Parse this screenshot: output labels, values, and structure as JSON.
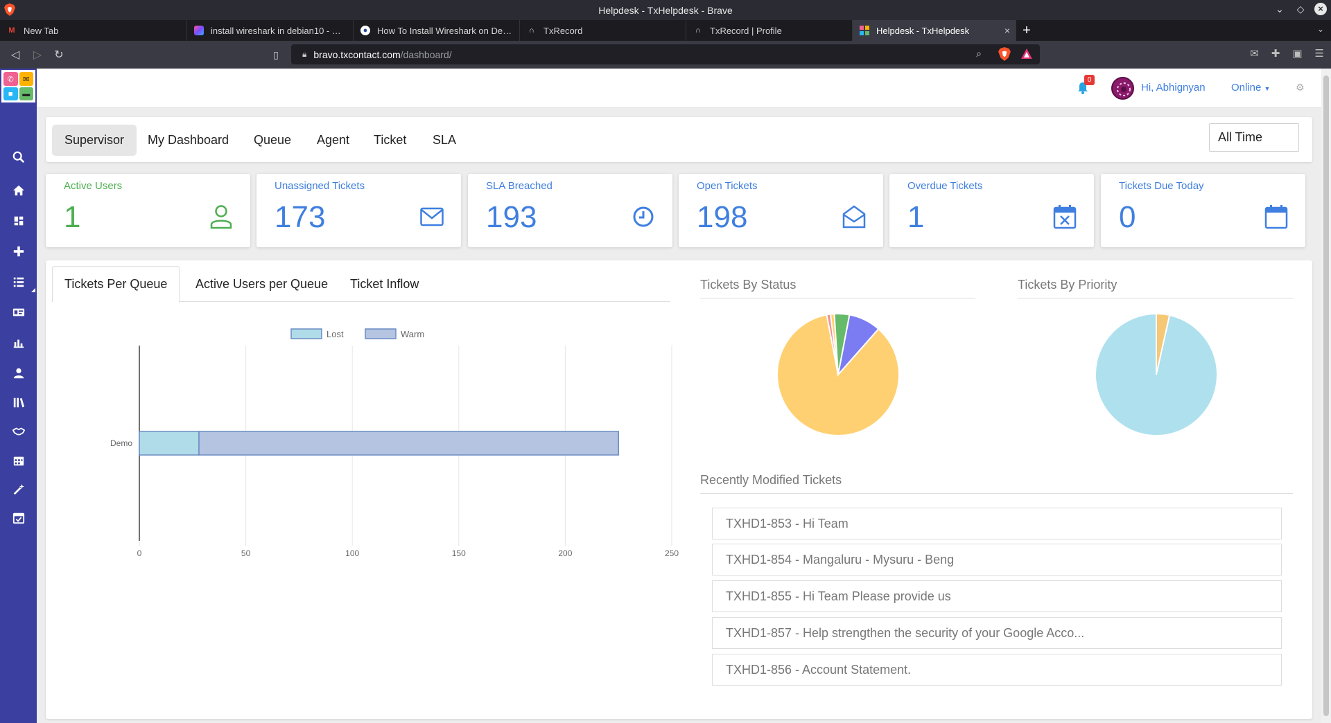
{
  "browser": {
    "window_title": "Helpdesk - TxHelpdesk - Brave",
    "tabs": [
      {
        "title": "New Tab",
        "icon": "gmail-icon"
      },
      {
        "title": "install wireshark in debian10 - You",
        "icon": "app-icon"
      },
      {
        "title": "How To Install Wireshark on Debia",
        "icon": "globe-icon"
      },
      {
        "title": "TxRecord",
        "icon": "headset-icon"
      },
      {
        "title": "TxRecord | Profile",
        "icon": "headset-icon"
      },
      {
        "title": "Helpdesk - TxHelpdesk",
        "icon": "txhelpdesk-icon",
        "active": true
      }
    ],
    "url_host": "bravo.txcontact.com",
    "url_path": "/dashboard/"
  },
  "header": {
    "notification_count": "0",
    "greeting": "Hi, Abhignyan",
    "status": "Online"
  },
  "nav": {
    "tabs": [
      "Supervisor",
      "My Dashboard",
      "Queue",
      "Agent",
      "Ticket",
      "SLA"
    ],
    "active": "Supervisor",
    "time_filter": "All Time"
  },
  "stats": [
    {
      "label": "Active Users",
      "value": "1",
      "icon": "user-icon",
      "color": "#4caf50"
    },
    {
      "label": "Unassigned Tickets",
      "value": "173",
      "icon": "envelope-icon",
      "color": "#3f7fe0"
    },
    {
      "label": "SLA Breached",
      "value": "193",
      "icon": "clock-icon",
      "color": "#3f7fe0"
    },
    {
      "label": "Open Tickets",
      "value": "198",
      "icon": "open-envelope-icon",
      "color": "#3f7fe0"
    },
    {
      "label": "Overdue Tickets",
      "value": "1",
      "icon": "calendar-x-icon",
      "color": "#3f7fe0"
    },
    {
      "label": "Tickets Due Today",
      "value": "0",
      "icon": "calendar-icon",
      "color": "#3f7fe0"
    }
  ],
  "chart_tabs": [
    "Tickets Per Queue",
    "Active Users per Queue",
    "Ticket Inflow"
  ],
  "chart_data": [
    {
      "type": "bar",
      "orientation": "horizontal",
      "stacked": true,
      "categories": [
        "Demo"
      ],
      "series": [
        {
          "name": "Lost",
          "values": [
            28
          ],
          "color": "#b0dbe8"
        },
        {
          "name": "Warm",
          "values": [
            197
          ],
          "color": "#b4c4e1"
        }
      ],
      "xlim": [
        0,
        250
      ],
      "xticks": [
        0,
        50,
        100,
        150,
        200,
        250
      ],
      "grid": true,
      "legend": "top"
    },
    {
      "type": "pie",
      "title": "Tickets By Status",
      "slices": [
        {
          "value": 85.5,
          "color": "#ffd071"
        },
        {
          "value": 1,
          "color": "#f29191"
        },
        {
          "value": 1,
          "color": "#ffd071"
        },
        {
          "value": 4,
          "color": "#66bb6a"
        },
        {
          "value": 8.5,
          "color": "#7b7bf2"
        }
      ]
    },
    {
      "type": "pie",
      "title": "Tickets By Priority",
      "slices": [
        {
          "value": 3.5,
          "color": "#f6c875"
        },
        {
          "value": 96.5,
          "color": "#aee0ee"
        }
      ]
    }
  ],
  "recent": {
    "title": "Recently Modified Tickets",
    "items": [
      "TXHD1-853 - Hi Team",
      "TXHD1-854 - Mangaluru - Mysuru - Beng",
      "TXHD1-855 - Hi Team Please provide us",
      "TXHD1-857 - Help strengthen the security of your Google Acco...",
      "TXHD1-856 - Account Statement."
    ]
  }
}
